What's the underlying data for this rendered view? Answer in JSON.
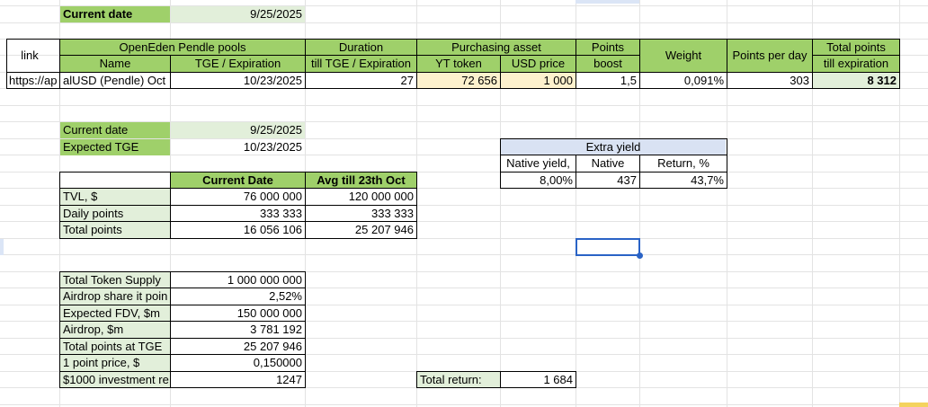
{
  "top": {
    "current_date_label": "Current date",
    "current_date_value": "9/25/2025"
  },
  "pools": {
    "link_header": "link",
    "group_header": "OpenEden Pendle pools",
    "name_header": "Name",
    "tge_header": "TGE / Expiration",
    "duration_header_1": "Duration",
    "duration_header_2": "till TGE / Expiration",
    "purchasing_header": "Purchasing asset",
    "yt_header": "YT token",
    "usd_header": "USD price",
    "points_header_1": "Points",
    "points_header_2": "boost",
    "weight_header": "Weight",
    "ppd_header": "Points per day",
    "total_header_1": "Total points",
    "total_header_2": "till expiration",
    "row": {
      "link": "https://ap",
      "name": "alUSD (Pendle) Oct",
      "tge": "10/23/2025",
      "duration": "27",
      "yt": "72 656",
      "usd": "1 000",
      "boost": "1,5",
      "weight": "0,091%",
      "ppd": "303",
      "total": "8 312"
    }
  },
  "dates": {
    "current_label": "Current date",
    "current_value": "9/25/2025",
    "tge_label": "Expected TGE",
    "tge_value": "10/23/2025"
  },
  "tvl_table": {
    "col1": "Current Date",
    "col2": "Avg till 23th Oct",
    "rows": [
      {
        "label": "TVL, $",
        "v1": "76 000 000",
        "v2": "120 000 000"
      },
      {
        "label": "Daily points",
        "v1": "333 333",
        "v2": "333 333"
      },
      {
        "label": "Total points",
        "v1": "16 056 106",
        "v2": "25 207 946"
      }
    ]
  },
  "extra_yield": {
    "title": "Extra yield",
    "h1": "Native yield,",
    "h2": "Native",
    "h3": "Return, %",
    "v1": "8,00%",
    "v2": "437",
    "v3": "43,7%"
  },
  "calc_table": {
    "rows": [
      {
        "label": "Total Token Supply",
        "value": "1 000 000 000"
      },
      {
        "label": "Airdrop share it poin",
        "value": "2,52%"
      },
      {
        "label": "Expected FDV, $m",
        "value": "150 000 000"
      },
      {
        "label": "Airdrop, $m",
        "value": "3 781 192"
      },
      {
        "label": "Total points at TGE",
        "value": "25 207 946"
      },
      {
        "label": "1 point price, $",
        "value": "0,150000"
      },
      {
        "label": "$1000 investment re",
        "value": "1247"
      }
    ]
  },
  "total_return": {
    "label": "Total return:",
    "value": "1 684"
  }
}
